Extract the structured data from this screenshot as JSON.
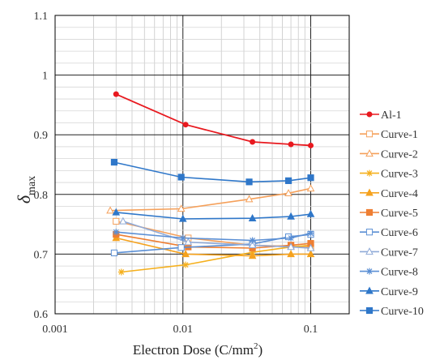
{
  "chart_data": {
    "type": "line",
    "xscale": "log",
    "xlabel": "Electron Dose (C/mm",
    "xlabel_sup": "2",
    "xlabel_close": ")",
    "ylabel": "δ",
    "ylabel_sub": "max",
    "xlim": [
      0.001,
      0.2
    ],
    "ylim": [
      0.6,
      1.1
    ],
    "x_ticks": [
      0.001,
      0.01,
      0.1
    ],
    "x_tick_labels": [
      "0.001",
      "0.01",
      "0.1"
    ],
    "y_ticks": [
      0.6,
      0.7,
      0.8,
      0.9,
      1.0,
      1.1
    ],
    "y_tick_labels": [
      "0.6",
      "0.7",
      "0.8",
      "0.9",
      "1",
      "1.1"
    ],
    "grid": true,
    "legend_position": "right",
    "series": [
      {
        "name": "Al-1",
        "color": "#e8191f",
        "marker": "circle",
        "x": [
          0.003,
          0.0105,
          0.035,
          0.07,
          0.1
        ],
        "y": [
          0.968,
          0.917,
          0.888,
          0.884,
          0.882
        ]
      },
      {
        "name": "Curve-1",
        "color": "#f5a05a",
        "marker": "square-open",
        "x": [
          0.003,
          0.011,
          0.035,
          0.07,
          0.1
        ],
        "y": [
          0.755,
          0.727,
          0.715,
          0.713,
          0.712
        ]
      },
      {
        "name": "Curve-2",
        "color": "#f5a05a",
        "marker": "triangle-open",
        "x": [
          0.0027,
          0.0097,
          0.033,
          0.067,
          0.1
        ],
        "y": [
          0.773,
          0.776,
          0.792,
          0.802,
          0.81
        ]
      },
      {
        "name": "Curve-3",
        "color": "#f5b01e",
        "marker": "star",
        "x": [
          0.0033,
          0.0105,
          0.035,
          0.07,
          0.1
        ],
        "y": [
          0.67,
          0.682,
          0.703,
          0.712,
          0.715
        ]
      },
      {
        "name": "Curve-4",
        "color": "#f5a21e",
        "marker": "triangle",
        "x": [
          0.003,
          0.0105,
          0.035,
          0.07,
          0.1
        ],
        "y": [
          0.727,
          0.7,
          0.697,
          0.7,
          0.7
        ]
      },
      {
        "name": "Curve-5",
        "color": "#ee7f33",
        "marker": "square",
        "x": [
          0.003,
          0.011,
          0.035,
          0.07,
          0.1
        ],
        "y": [
          0.733,
          0.712,
          0.71,
          0.715,
          0.718
        ]
      },
      {
        "name": "Curve-6",
        "color": "#5b8fd4",
        "marker": "square-open",
        "x": [
          0.0029,
          0.0097,
          0.035,
          0.067,
          0.1
        ],
        "y": [
          0.702,
          0.711,
          0.717,
          0.729,
          0.733
        ]
      },
      {
        "name": "Curve-7",
        "color": "#8faad8",
        "marker": "triangle-open",
        "x": [
          0.0034,
          0.011,
          0.035,
          0.07,
          0.1
        ],
        "y": [
          0.755,
          0.72,
          0.715,
          0.712,
          0.71
        ]
      },
      {
        "name": "Curve-8",
        "color": "#5b8fd4",
        "marker": "star",
        "x": [
          0.003,
          0.01,
          0.035,
          0.07,
          0.1
        ],
        "y": [
          0.737,
          0.727,
          0.723,
          0.727,
          0.735
        ]
      },
      {
        "name": "Curve-9",
        "color": "#2f77c9",
        "marker": "triangle",
        "x": [
          0.003,
          0.01,
          0.035,
          0.07,
          0.1
        ],
        "y": [
          0.77,
          0.759,
          0.76,
          0.763,
          0.767
        ]
      },
      {
        "name": "Curve-10",
        "color": "#2f77c9",
        "marker": "square",
        "x": [
          0.0029,
          0.0097,
          0.033,
          0.067,
          0.1
        ],
        "y": [
          0.854,
          0.829,
          0.821,
          0.823,
          0.828
        ]
      }
    ]
  }
}
